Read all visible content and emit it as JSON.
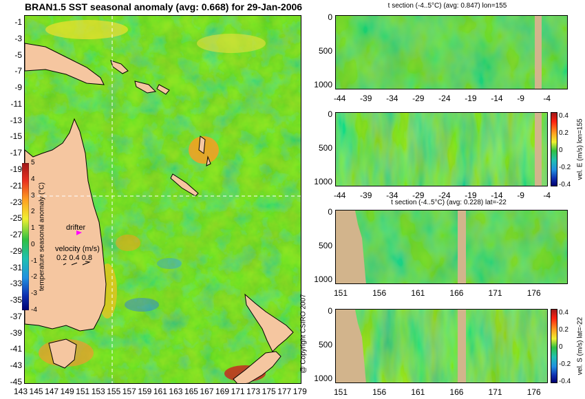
{
  "figure": {
    "title": "BRAN1.5 SST seasonal anomaly (avg: 0.668) for 29-Jan-2006",
    "copyright": "@ Copyright CSIRO 2007"
  },
  "colors": {
    "background": "#ffffff",
    "land": "#d2b48c",
    "land_map": "#f5c6a0",
    "ocean_base": "#2fc24a",
    "crosshair": "#ffffff",
    "drifter": "#ff00ff"
  },
  "map": {
    "lat_ticks": [
      "-1",
      "-3",
      "-5",
      "-7",
      "-9",
      "-11",
      "-13",
      "-15",
      "-17",
      "-19",
      "-21",
      "-23",
      "-25",
      "-27",
      "-29",
      "-31",
      "-33",
      "-35",
      "-37",
      "-39",
      "-41",
      "-43",
      "-45"
    ],
    "lon_ticks": [
      "143",
      "145",
      "147",
      "149",
      "151",
      "153",
      "155",
      "157",
      "159",
      "161",
      "163",
      "165",
      "167",
      "169",
      "171",
      "173",
      "175",
      "177",
      "179"
    ],
    "colorbar": {
      "label": "temperature seasonal anomaly (°C)",
      "ticks": [
        "5",
        "4",
        "3",
        "2",
        "1",
        "0",
        "-1",
        "-2",
        "-3",
        "-4"
      ]
    },
    "drifter_label": "drifter",
    "velocity_label": "velocity (m/s)",
    "velocity_values": "0.2 0.4 0.8",
    "crosshair": {
      "lon": 155,
      "lat": -22
    }
  },
  "panels": [
    {
      "id": "t-section-lon",
      "title": "t section (-4..5°C) (avg: 0.847) lon=155",
      "y_ticks": [
        "0",
        "500",
        "1000"
      ],
      "x_ticks": [
        "-44",
        "-39",
        "-34",
        "-29",
        "-24",
        "-19",
        "-14",
        "-9",
        "-4"
      ],
      "side_label": ""
    },
    {
      "id": "velE-lon",
      "title": "",
      "y_ticks": [
        "0",
        "500",
        "1000"
      ],
      "x_ticks": [
        "-44",
        "-39",
        "-34",
        "-29",
        "-24",
        "-19",
        "-14",
        "-9",
        "-4"
      ],
      "side_label": "vel. E (m/s) lon=155",
      "cbar_ticks": [
        "0.4",
        "0.2",
        "0",
        "-0.2",
        "-0.4"
      ]
    },
    {
      "id": "t-section-lat",
      "title": "t section (-4..5°C) (avg: 0.228) lat=-22",
      "y_ticks": [
        "0",
        "500",
        "1000"
      ],
      "x_ticks": [
        "151",
        "156",
        "161",
        "166",
        "171",
        "176"
      ],
      "side_label": ""
    },
    {
      "id": "velS-lat",
      "title": "",
      "y_ticks": [
        "0",
        "500",
        "1000"
      ],
      "x_ticks": [
        "151",
        "156",
        "161",
        "166",
        "171",
        "176"
      ],
      "side_label": "vel. S (m/s) lat=-22",
      "cbar_ticks": [
        "0.4",
        "0.2",
        "0",
        "-0.2",
        "-0.4"
      ]
    }
  ],
  "chart_data": [
    {
      "type": "heatmap",
      "title": "BRAN1.5 SST seasonal anomaly (avg: 0.668) for 29-Jan-2006",
      "xlabel": "",
      "ylabel": "",
      "xlim": [
        143,
        180
      ],
      "ylim": [
        -45,
        0
      ],
      "colorbar_range": [
        -4,
        5
      ],
      "colorbar_label": "temperature seasonal anomaly (°C)",
      "mean": 0.668
    },
    {
      "type": "heatmap",
      "title": "t section (-4..5°C) (avg: 0.847) lon=155",
      "xlim": [
        -46,
        0
      ],
      "ylim": [
        1050,
        0
      ],
      "mean": 0.847
    },
    {
      "type": "heatmap",
      "title": "",
      "xlim": [
        -46,
        0
      ],
      "ylim": [
        1050,
        0
      ],
      "colorbar_range": [
        -0.4,
        0.4
      ],
      "colorbar_label": "vel. E (m/s) lon=155"
    },
    {
      "type": "heatmap",
      "title": "t section (-4..5°C) (avg: 0.228) lat=-22",
      "xlim": [
        149,
        181
      ],
      "ylim": [
        1050,
        0
      ],
      "mean": 0.228
    },
    {
      "type": "heatmap",
      "title": "",
      "xlim": [
        149,
        181
      ],
      "ylim": [
        1050,
        0
      ],
      "colorbar_range": [
        -0.4,
        0.4
      ],
      "colorbar_label": "vel. S (m/s) lat=-22"
    }
  ]
}
